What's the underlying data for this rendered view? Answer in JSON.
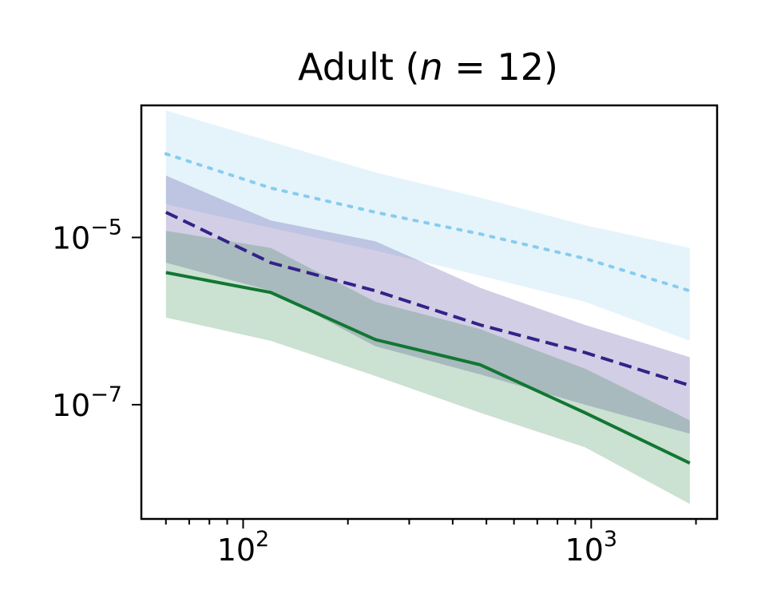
{
  "chart_data": {
    "type": "line",
    "title": "Adult (n = 12)",
    "title_parts": {
      "prefix": "Adult (",
      "variable": "n",
      "suffix": " = 12)"
    },
    "xlabel": "",
    "ylabel": "",
    "xscale": "log",
    "yscale": "log",
    "xlim": [
      51,
      2300
    ],
    "ylim": [
      4.3e-09,
      0.00038
    ],
    "x_ticks": [
      {
        "value": 100,
        "base": "10",
        "exp": "2"
      },
      {
        "value": 1000,
        "base": "10",
        "exp": "3"
      }
    ],
    "y_ticks": [
      {
        "value": 1e-07,
        "base": "10",
        "exp": "−7"
      },
      {
        "value": 1e-05,
        "base": "10",
        "exp": "−5"
      }
    ],
    "grid": false,
    "legend": false,
    "x": [
      60,
      120,
      240,
      480,
      960,
      1920
    ],
    "series": [
      {
        "color": "#88ccee",
        "dash": "dotted",
        "values": [
          0.0001,
          3.9e-05,
          2e-05,
          1.1e-05,
          5.6e-06,
          2.3e-06
        ],
        "band_upper": [
          0.00033,
          0.00014,
          6e-05,
          3e-05,
          1.4e-05,
          7.5e-06
        ],
        "band_lower": [
          2.5e-05,
          1.3e-05,
          7e-06,
          3.5e-06,
          1.7e-06,
          5.8e-07
        ]
      },
      {
        "color": "#332288",
        "dash": "dashed",
        "values": [
          2e-05,
          5e-06,
          2.3e-06,
          9e-07,
          4.2e-07,
          1.7e-07
        ],
        "band_upper": [
          5.5e-05,
          1.6e-05,
          9e-06,
          2.5e-06,
          9e-07,
          3.7e-07
        ],
        "band_lower": [
          5e-06,
          2.3e-06,
          5e-07,
          2.3e-07,
          1e-07,
          4.5e-08
        ]
      },
      {
        "color": "#117733",
        "dash": "solid",
        "values": [
          3.8e-06,
          2.2e-06,
          6e-07,
          3e-07,
          8e-08,
          2e-08
        ],
        "band_upper": [
          1.2e-05,
          7.5e-06,
          1.7e-06,
          8e-07,
          2.7e-07,
          6.5e-08
        ],
        "band_lower": [
          1.1e-06,
          5.8e-07,
          2.2e-07,
          8e-08,
          3.1e-08,
          6.5e-09
        ]
      }
    ]
  }
}
